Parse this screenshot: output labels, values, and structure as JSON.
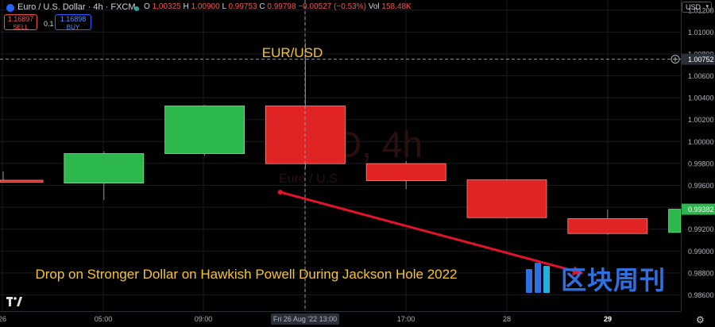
{
  "header": {
    "symbol_title": "Euro / U.S. Dollar · 4h · FXCM",
    "ohlc": {
      "o_label": "O",
      "o": "1.00325",
      "h_label": "H",
      "h": "1.00900",
      "l_label": "L",
      "l": "0.99753",
      "c_label": "C",
      "c": "0.99798",
      "change": "−0.00527 (−0.53%)",
      "vol_label": "Vol",
      "vol": "158.48K"
    },
    "sell": {
      "price": "1.16897",
      "label": "SELL"
    },
    "buy": {
      "price": "1.16898",
      "label": "BUY"
    },
    "spread": "0.1",
    "currency": "USD"
  },
  "watermark": {
    "symbol": "USD, 4h",
    "description": "Euro / U.S."
  },
  "brand": {
    "text": "区块周刊",
    "icon": "brand-bars-icon"
  },
  "colors": {
    "up": "#2db84d",
    "down": "#e02424",
    "arrow": "#e3132b",
    "annotation": "#f5c431"
  },
  "chart_data": {
    "type": "candlestick",
    "title": "EUR/USD",
    "annotation": "Drop on Stronger Dollar on Hawkish Powell During Jackson Hole 2022",
    "x_tick_labels": [
      "26",
      "05:00",
      "09:00",
      "Fri 26 Aug '22  13:00",
      "17:00",
      "28",
      "29"
    ],
    "y_tick_labels": [
      "1.01200",
      "1.01000",
      "1.00800",
      "1.00600",
      "1.00400",
      "1.00200",
      "1.00000",
      "0.99800",
      "0.99600",
      "0.99400",
      "0.99200",
      "0.99000",
      "0.98800",
      "0.98600"
    ],
    "ylim": [
      0.9856,
      1.0122
    ],
    "candles": [
      {
        "o": 0.99647,
        "h": 0.99727,
        "l": 0.99627,
        "c": 0.99627
      },
      {
        "o": 0.99621,
        "h": 0.9991,
        "l": 0.99467,
        "c": 0.9989
      },
      {
        "o": 0.9989,
        "h": 1.00333,
        "l": 0.9987,
        "c": 1.00325
      },
      {
        "o": 1.00325,
        "h": 1.009,
        "l": 0.99753,
        "c": 0.99798
      },
      {
        "o": 0.99798,
        "h": 0.99822,
        "l": 0.99565,
        "c": 0.99642
      },
      {
        "o": 0.9965,
        "h": 0.99655,
        "l": 0.99295,
        "c": 0.99305
      },
      {
        "o": 0.99296,
        "h": 0.99378,
        "l": 0.9915,
        "c": 0.9916
      },
      {
        "o": 0.9917,
        "h": 0.9939,
        "l": 0.9916,
        "c": 0.99382
      }
    ],
    "crosshair_price": "1.00752",
    "last_price": "0.99382",
    "trend_arrow": {
      "from": {
        "candle": 2.75,
        "price": 0.99538
      },
      "to": {
        "candle": 5.75,
        "price": 0.98798
      }
    },
    "grid": true
  }
}
